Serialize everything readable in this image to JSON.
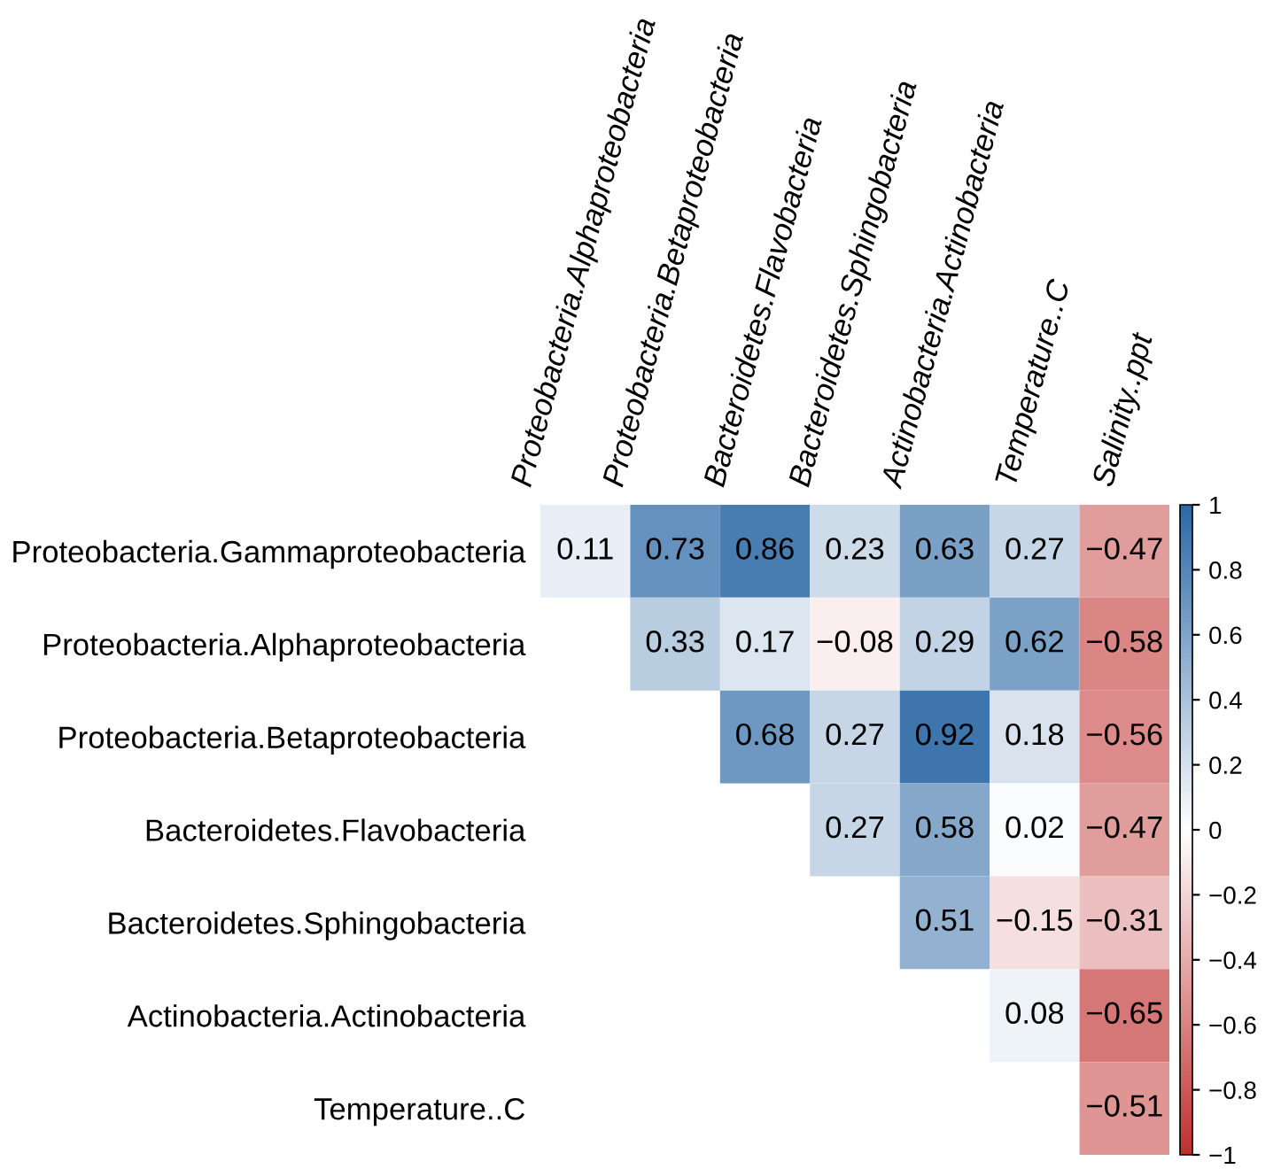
{
  "chart_data": {
    "type": "heatmap",
    "categories": [
      "Proteobacteria.Alphaproteobacteria",
      "Proteobacteria.Betaproteobacteria",
      "Bacteroidetes.Flavobacteria",
      "Bacteroidetes.Sphingobacteria",
      "Actinobacteria.Actinobacteria",
      "Temperature..C",
      "Salinity..ppt"
    ],
    "y_categories": [
      "Proteobacteria.Gammaproteobacteria",
      "Proteobacteria.Alphaproteobacteria",
      "Proteobacteria.Betaproteobacteria",
      "Bacteroidetes.Flavobacteria",
      "Bacteroidetes.Sphingobacteria",
      "Actinobacteria.Actinobacteria",
      "Temperature..C"
    ],
    "cells": [
      [
        0.11,
        0.73,
        0.86,
        0.23,
        0.63,
        0.27,
        -0.47
      ],
      [
        null,
        0.33,
        0.17,
        -0.08,
        0.29,
        0.62,
        -0.58
      ],
      [
        null,
        null,
        0.68,
        0.27,
        0.92,
        0.18,
        -0.56
      ],
      [
        null,
        null,
        null,
        0.27,
        0.58,
        0.02,
        -0.47
      ],
      [
        null,
        null,
        null,
        null,
        0.51,
        -0.15,
        -0.31
      ],
      [
        null,
        null,
        null,
        null,
        null,
        0.08,
        -0.65
      ],
      [
        null,
        null,
        null,
        null,
        null,
        null,
        -0.51
      ]
    ],
    "colors": [
      "#c0302f",
      "#ffffff",
      "#2c69a5"
    ],
    "data_labels": true,
    "clim": [
      -1,
      1
    ],
    "cticks": [
      1,
      0.8,
      0.6,
      0.4,
      0.2,
      0,
      {
        "value": -0.2,
        "label": "−0.2"
      },
      {
        "value": -0.4,
        "label": "−0.4"
      },
      {
        "value": -0.6,
        "label": "−0.6"
      },
      {
        "value": -0.8,
        "label": "−0.8"
      },
      {
        "value": -1,
        "label": "−1"
      }
    ]
  }
}
